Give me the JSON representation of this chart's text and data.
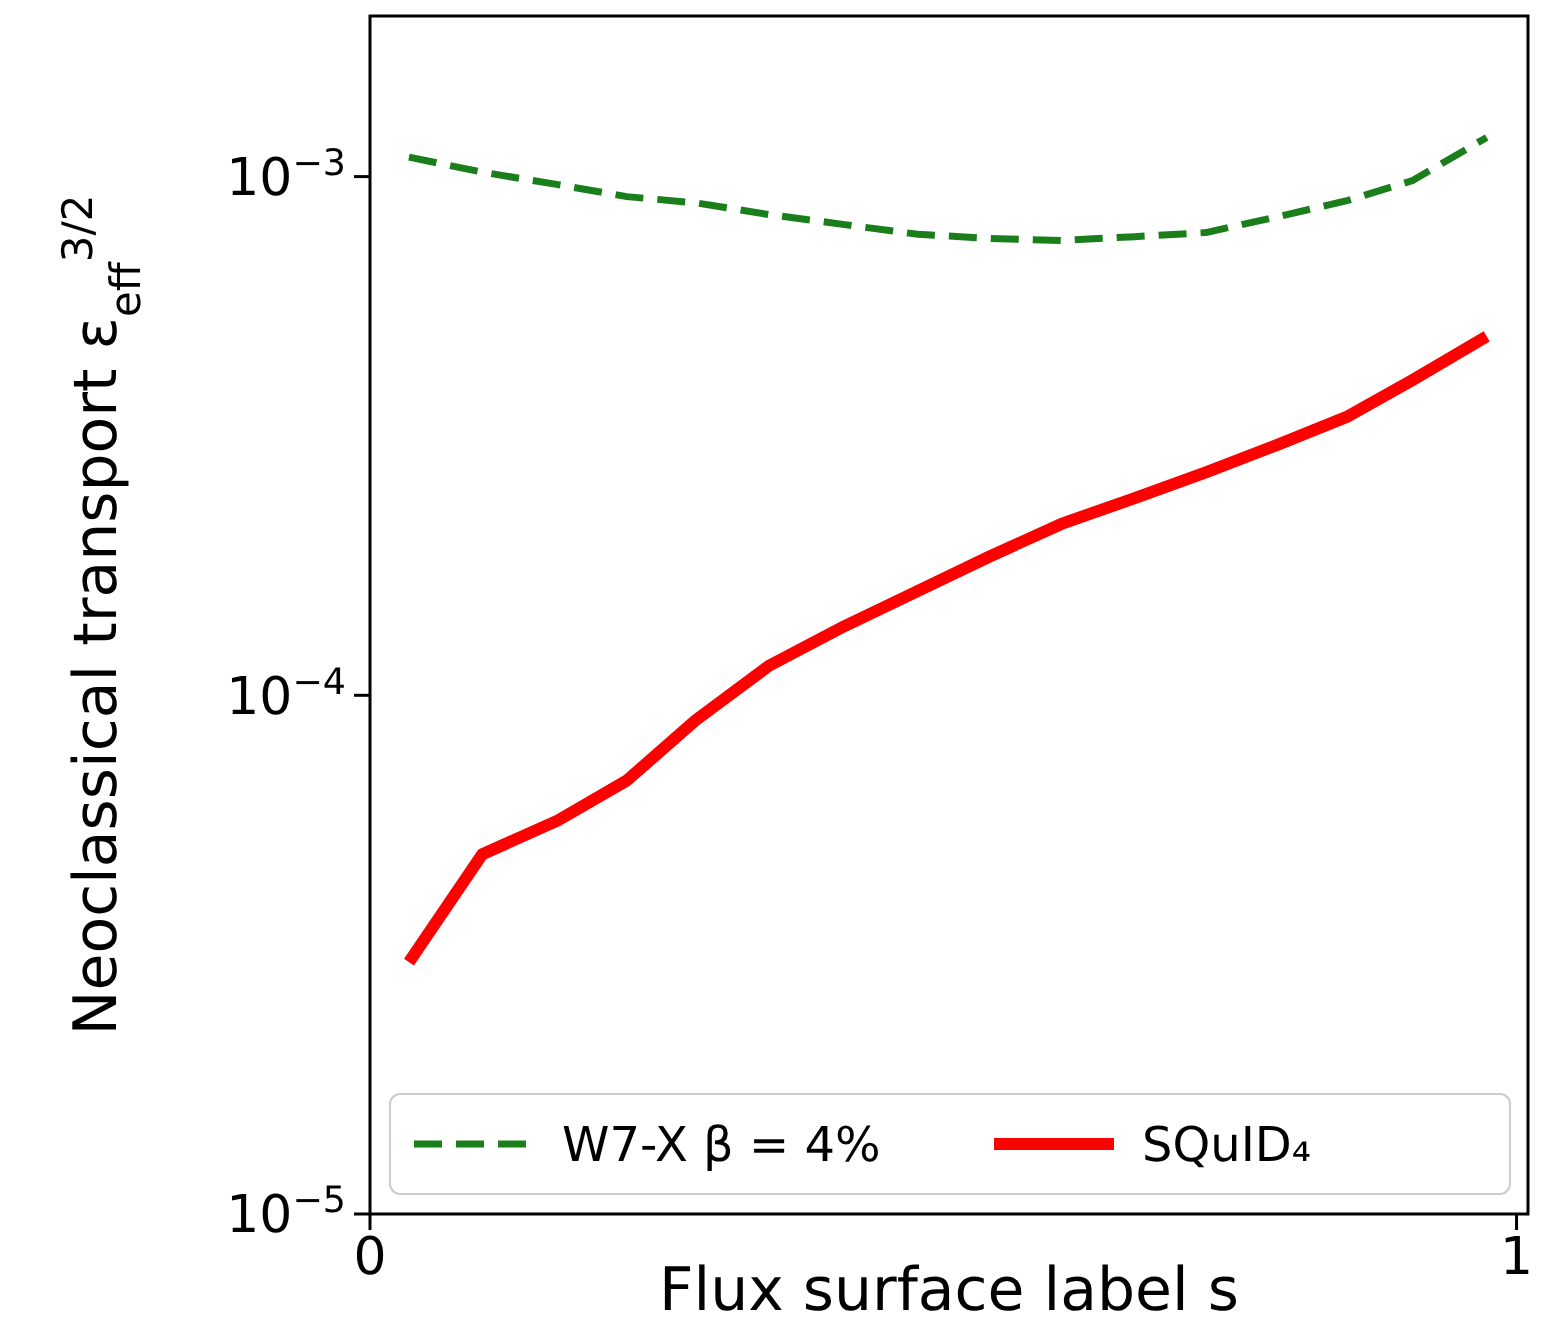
{
  "chart_data": {
    "type": "line",
    "xlabel": "Flux surface label s",
    "ylabel": "Neoclassical transport ε$_{eff}$$^{3/2}$",
    "log": "y",
    "xlim": [
      0,
      1.01
    ],
    "xticks": [
      0,
      1
    ],
    "ylim": [
      1e-05,
      0.00204
    ],
    "yticks": [
      {
        "value": 1e-05,
        "label": "10$^{−5}$"
      },
      {
        "value": 0.0001,
        "label": "10$^{−4}$"
      },
      {
        "value": 0.001,
        "label": "10$^{−3}$"
      }
    ],
    "legend": "bottom",
    "grid": false,
    "x": [
      0.034,
      0.098,
      0.164,
      0.224,
      0.284,
      0.348,
      0.414,
      0.478,
      0.54,
      0.603,
      0.667,
      0.729,
      0.793,
      0.853,
      0.909,
      0.974
    ],
    "series": [
      {
        "name": "W7-X β = 4%",
        "color": "#1a7f1a",
        "line_style": "dashed",
        "values": [
          0.00109,
          0.00102,
          0.000965,
          0.000915,
          0.00089,
          0.000845,
          0.000808,
          0.000774,
          0.00076,
          0.000753,
          0.000766,
          0.00078,
          0.000838,
          0.0009,
          0.000982,
          0.00119
        ]
      },
      {
        "name": "SQuID₄",
        "color": "#ff0000",
        "line_style": "solid",
        "values": [
          3.06e-05,
          4.94e-05,
          5.74e-05,
          6.85e-05,
          8.95e-05,
          0.000114,
          0.000136,
          0.000159,
          0.000185,
          0.000214,
          0.00024,
          0.000269,
          0.000305,
          0.000345,
          0.000405,
          0.000492
        ]
      }
    ]
  }
}
